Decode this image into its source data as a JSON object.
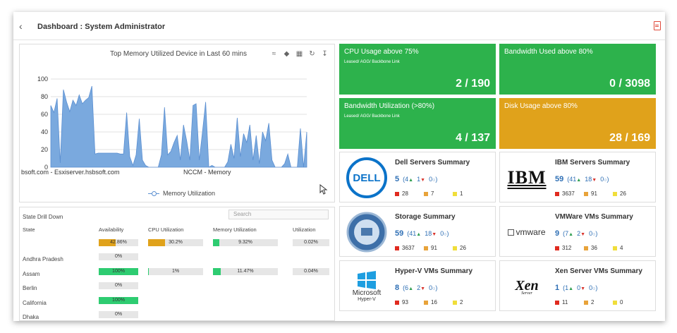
{
  "header": {
    "title": "Dashboard : System Administrator"
  },
  "chart": {
    "title": "Top Memory Utilized Device in Last 60 mins",
    "legend": "Memory Utilization",
    "x_labels": [
      "bsoft.com - Esxiserver.hsbsoft.com",
      "NCCM - Memory"
    ],
    "y_ticks": [
      "100",
      "80",
      "60",
      "40",
      "20",
      "0"
    ],
    "tools": [
      "trend-icon",
      "layers-icon",
      "grid-icon",
      "refresh-icon",
      "download-icon"
    ]
  },
  "chart_data": {
    "type": "area",
    "title": "Top Memory Utilized Device in Last 60 mins",
    "ylim": [
      0,
      100
    ],
    "series": [
      {
        "name": "Memory Utilization",
        "values": [
          70,
          62,
          78,
          5,
          88,
          74,
          63,
          76,
          70,
          82,
          72,
          76,
          79,
          92,
          15,
          16,
          16,
          16,
          16,
          16,
          16,
          16,
          15,
          15,
          62,
          12,
          2,
          14,
          55,
          8,
          2,
          0,
          0,
          0,
          0,
          14,
          68,
          14,
          18,
          28,
          36,
          8,
          48,
          30,
          8,
          70,
          72,
          8,
          40,
          74,
          0,
          2,
          0,
          0,
          0,
          0,
          6,
          26,
          10,
          56,
          12,
          38,
          28,
          48,
          8,
          36,
          4,
          40,
          30,
          50,
          8,
          0,
          0,
          0,
          4,
          15,
          0,
          0,
          0,
          44,
          0,
          40
        ]
      }
    ],
    "grid": true
  },
  "drill": {
    "title": "State Drill Down",
    "search_placeholder": "Search",
    "columns": [
      "State",
      "Availability",
      "CPU Utilization",
      "Memory Utilization",
      "Utilization"
    ],
    "rows": [
      {
        "state": "",
        "availability": "42.86%",
        "avail_pct": 42.86,
        "cpu": "30.2%",
        "cpu_pct": 30.2,
        "memory": "9.32%",
        "mem_pct": 9.32,
        "util": "0.02%"
      },
      {
        "state": "Andhra Pradesh",
        "availability": "0%",
        "avail_pct": 0
      },
      {
        "state": "Assam",
        "availability": "100%",
        "avail_pct": 100,
        "cpu": "1%",
        "cpu_pct": 1,
        "memory": "11.47%",
        "mem_pct": 11.47,
        "util": "0.04%"
      },
      {
        "state": "Berlin",
        "availability": "0%",
        "avail_pct": 0
      },
      {
        "state": "California",
        "availability": "100%",
        "avail_pct": 100
      },
      {
        "state": "Dhaka",
        "availability": "0%",
        "avail_pct": 0
      }
    ]
  },
  "tiles": [
    {
      "title": "CPU Usage above 75%",
      "sub": "Leased/ AGG/ Backbone Link",
      "value": "2 / 190",
      "color": "#2db24c"
    },
    {
      "title": "Bandwidth Used above 80%",
      "sub": "",
      "value": "0 / 3098",
      "color": "#2db24c"
    },
    {
      "title": "Bandwidth Utilization (>80%)",
      "sub": "Leased/ AGG/ Backbone Link",
      "value": "4 / 137",
      "color": "#2db24c"
    },
    {
      "title": "Disk Usage above 80%",
      "sub": "",
      "value": "28 / 169",
      "color": "#e0a21b"
    }
  ],
  "cards": [
    {
      "title": "Dell Servers Summary",
      "total": "5",
      "up": "4",
      "down": "1",
      "other": "0",
      "crit": "28",
      "major": "7",
      "minor": "1",
      "logo": "DELL"
    },
    {
      "title": "IBM Servers Summary",
      "total": "59",
      "up": "41",
      "down": "18",
      "other": "0",
      "crit": "3637",
      "major": "91",
      "minor": "26",
      "logo": "IBM"
    },
    {
      "title": "Storage Summary",
      "total": "59",
      "up": "41",
      "down": "18",
      "other": "0",
      "crit": "3637",
      "major": "91",
      "minor": "26",
      "logo": ""
    },
    {
      "title": "VMWare VMs Summary",
      "total": "9",
      "up": "7",
      "down": "2",
      "other": "0",
      "crit": "312",
      "major": "36",
      "minor": "4",
      "logo": "vmware"
    },
    {
      "title": "Hyper-V VMs Summary",
      "total": "8",
      "up": "6",
      "down": "2",
      "other": "0",
      "crit": "93",
      "major": "16",
      "minor": "2",
      "logo": "Microsoft",
      "logo_sub": "Hyper-V"
    },
    {
      "title": "Xen Server VMs Summary",
      "total": "1",
      "up": "1",
      "down": "0",
      "other": "0",
      "crit": "11",
      "major": "2",
      "minor": "0",
      "logo": "Xen",
      "logo_sub": "Server"
    }
  ],
  "colors": {
    "critical": "#e02a1f",
    "major": "#e8a33a",
    "minor": "#f0de3a",
    "chart_fill": "#7aa9de",
    "chart_line": "#5b8fd1",
    "avail_bar": "#2ecc71",
    "cpu_bar": "#e0a21b",
    "mem_bar": "#2ecc71"
  }
}
